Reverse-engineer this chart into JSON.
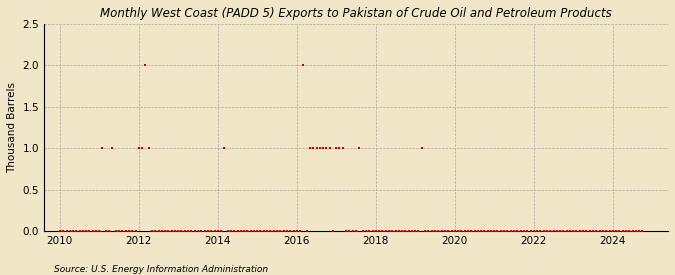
{
  "title": "hly West Coast (PADD 5) Exports to Pakistan of Crude Oil and Petroleum Products",
  "title_prefix": "Mont",
  "ylabel": "Thousand Barrels",
  "source": "Source: U.S. Energy Information Administration",
  "background_color": "#f2e6c8",
  "plot_bg_color": "#f2e6c8",
  "marker_color": "#cc0000",
  "marker_size": 3,
  "ylim": [
    0,
    2.5
  ],
  "yticks": [
    0.0,
    0.5,
    1.0,
    1.5,
    2.0,
    2.5
  ],
  "xlim_start": 2009.6,
  "xlim_end": 2025.4,
  "xticks": [
    2010,
    2012,
    2014,
    2016,
    2018,
    2020,
    2022,
    2024
  ],
  "data_points": [
    [
      2010.0,
      0.0
    ],
    [
      2010.08,
      0.0
    ],
    [
      2010.17,
      0.0
    ],
    [
      2010.25,
      0.0
    ],
    [
      2010.33,
      0.0
    ],
    [
      2010.42,
      0.0
    ],
    [
      2010.5,
      0.0
    ],
    [
      2010.58,
      0.0
    ],
    [
      2010.67,
      0.0
    ],
    [
      2010.75,
      0.0
    ],
    [
      2010.83,
      0.0
    ],
    [
      2010.92,
      0.0
    ],
    [
      2011.0,
      0.0
    ],
    [
      2011.08,
      1.0
    ],
    [
      2011.17,
      0.0
    ],
    [
      2011.25,
      0.0
    ],
    [
      2011.33,
      1.0
    ],
    [
      2011.42,
      0.0
    ],
    [
      2011.5,
      0.0
    ],
    [
      2011.58,
      0.0
    ],
    [
      2011.67,
      0.0
    ],
    [
      2011.75,
      0.0
    ],
    [
      2011.83,
      0.0
    ],
    [
      2011.92,
      0.0
    ],
    [
      2012.0,
      1.0
    ],
    [
      2012.08,
      1.0
    ],
    [
      2012.17,
      2.0
    ],
    [
      2012.25,
      1.0
    ],
    [
      2012.33,
      0.0
    ],
    [
      2012.42,
      0.0
    ],
    [
      2012.5,
      0.0
    ],
    [
      2012.58,
      0.0
    ],
    [
      2012.67,
      0.0
    ],
    [
      2012.75,
      0.0
    ],
    [
      2012.83,
      0.0
    ],
    [
      2012.92,
      0.0
    ],
    [
      2013.0,
      0.0
    ],
    [
      2013.08,
      0.0
    ],
    [
      2013.17,
      0.0
    ],
    [
      2013.25,
      0.0
    ],
    [
      2013.33,
      0.0
    ],
    [
      2013.42,
      0.0
    ],
    [
      2013.5,
      0.0
    ],
    [
      2013.58,
      0.0
    ],
    [
      2013.67,
      0.0
    ],
    [
      2013.75,
      0.0
    ],
    [
      2013.83,
      0.0
    ],
    [
      2013.92,
      0.0
    ],
    [
      2014.0,
      0.0
    ],
    [
      2014.08,
      0.0
    ],
    [
      2014.17,
      1.0
    ],
    [
      2014.25,
      0.0
    ],
    [
      2014.33,
      0.0
    ],
    [
      2014.42,
      0.0
    ],
    [
      2014.5,
      0.0
    ],
    [
      2014.58,
      0.0
    ],
    [
      2014.67,
      0.0
    ],
    [
      2014.75,
      0.0
    ],
    [
      2014.83,
      0.0
    ],
    [
      2014.92,
      0.0
    ],
    [
      2015.0,
      0.0
    ],
    [
      2015.08,
      0.0
    ],
    [
      2015.17,
      0.0
    ],
    [
      2015.25,
      0.0
    ],
    [
      2015.33,
      0.0
    ],
    [
      2015.42,
      0.0
    ],
    [
      2015.5,
      0.0
    ],
    [
      2015.58,
      0.0
    ],
    [
      2015.67,
      0.0
    ],
    [
      2015.75,
      0.0
    ],
    [
      2015.83,
      0.0
    ],
    [
      2015.92,
      0.0
    ],
    [
      2016.0,
      0.0
    ],
    [
      2016.08,
      0.0
    ],
    [
      2016.17,
      2.0
    ],
    [
      2016.25,
      0.0
    ],
    [
      2016.33,
      1.0
    ],
    [
      2016.42,
      1.0
    ],
    [
      2016.5,
      1.0
    ],
    [
      2016.58,
      1.0
    ],
    [
      2016.67,
      1.0
    ],
    [
      2016.75,
      1.0
    ],
    [
      2016.83,
      1.0
    ],
    [
      2016.92,
      0.0
    ],
    [
      2017.0,
      1.0
    ],
    [
      2017.08,
      1.0
    ],
    [
      2017.17,
      1.0
    ],
    [
      2017.25,
      0.0
    ],
    [
      2017.33,
      0.0
    ],
    [
      2017.42,
      0.0
    ],
    [
      2017.5,
      0.0
    ],
    [
      2017.58,
      1.0
    ],
    [
      2017.67,
      0.0
    ],
    [
      2017.75,
      0.0
    ],
    [
      2017.83,
      0.0
    ],
    [
      2017.92,
      0.0
    ],
    [
      2018.0,
      0.0
    ],
    [
      2018.08,
      0.0
    ],
    [
      2018.17,
      0.0
    ],
    [
      2018.25,
      0.0
    ],
    [
      2018.33,
      0.0
    ],
    [
      2018.42,
      0.0
    ],
    [
      2018.5,
      0.0
    ],
    [
      2018.58,
      0.0
    ],
    [
      2018.67,
      0.0
    ],
    [
      2018.75,
      0.0
    ],
    [
      2018.83,
      0.0
    ],
    [
      2018.92,
      0.0
    ],
    [
      2019.0,
      0.0
    ],
    [
      2019.08,
      0.0
    ],
    [
      2019.17,
      1.0
    ],
    [
      2019.25,
      0.0
    ],
    [
      2019.33,
      0.0
    ],
    [
      2019.42,
      0.0
    ],
    [
      2019.5,
      0.0
    ],
    [
      2019.58,
      0.0
    ],
    [
      2019.67,
      0.0
    ],
    [
      2019.75,
      0.0
    ],
    [
      2019.83,
      0.0
    ],
    [
      2019.92,
      0.0
    ],
    [
      2020.0,
      0.0
    ],
    [
      2020.08,
      0.0
    ],
    [
      2020.17,
      0.0
    ],
    [
      2020.25,
      0.0
    ],
    [
      2020.33,
      0.0
    ],
    [
      2020.42,
      0.0
    ],
    [
      2020.5,
      0.0
    ],
    [
      2020.58,
      0.0
    ],
    [
      2020.67,
      0.0
    ],
    [
      2020.75,
      0.0
    ],
    [
      2020.83,
      0.0
    ],
    [
      2020.92,
      0.0
    ],
    [
      2021.0,
      0.0
    ],
    [
      2021.08,
      0.0
    ],
    [
      2021.17,
      0.0
    ],
    [
      2021.25,
      0.0
    ],
    [
      2021.33,
      0.0
    ],
    [
      2021.42,
      0.0
    ],
    [
      2021.5,
      0.0
    ],
    [
      2021.58,
      0.0
    ],
    [
      2021.67,
      0.0
    ],
    [
      2021.75,
      0.0
    ],
    [
      2021.83,
      0.0
    ],
    [
      2021.92,
      0.0
    ],
    [
      2022.0,
      0.0
    ],
    [
      2022.08,
      0.0
    ],
    [
      2022.17,
      0.0
    ],
    [
      2022.25,
      0.0
    ],
    [
      2022.33,
      0.0
    ],
    [
      2022.42,
      0.0
    ],
    [
      2022.5,
      0.0
    ],
    [
      2022.58,
      0.0
    ],
    [
      2022.67,
      0.0
    ],
    [
      2022.75,
      0.0
    ],
    [
      2022.83,
      0.0
    ],
    [
      2022.92,
      0.0
    ],
    [
      2023.0,
      0.0
    ],
    [
      2023.08,
      0.0
    ],
    [
      2023.17,
      0.0
    ],
    [
      2023.25,
      0.0
    ],
    [
      2023.33,
      0.0
    ],
    [
      2023.42,
      0.0
    ],
    [
      2023.5,
      0.0
    ],
    [
      2023.58,
      0.0
    ],
    [
      2023.67,
      0.0
    ],
    [
      2023.75,
      0.0
    ],
    [
      2023.83,
      0.0
    ],
    [
      2023.92,
      0.0
    ],
    [
      2024.0,
      0.0
    ],
    [
      2024.08,
      0.0
    ],
    [
      2024.17,
      0.0
    ],
    [
      2024.25,
      0.0
    ],
    [
      2024.33,
      0.0
    ],
    [
      2024.42,
      0.0
    ],
    [
      2024.5,
      0.0
    ],
    [
      2024.58,
      0.0
    ],
    [
      2024.67,
      0.0
    ],
    [
      2024.75,
      0.0
    ]
  ]
}
